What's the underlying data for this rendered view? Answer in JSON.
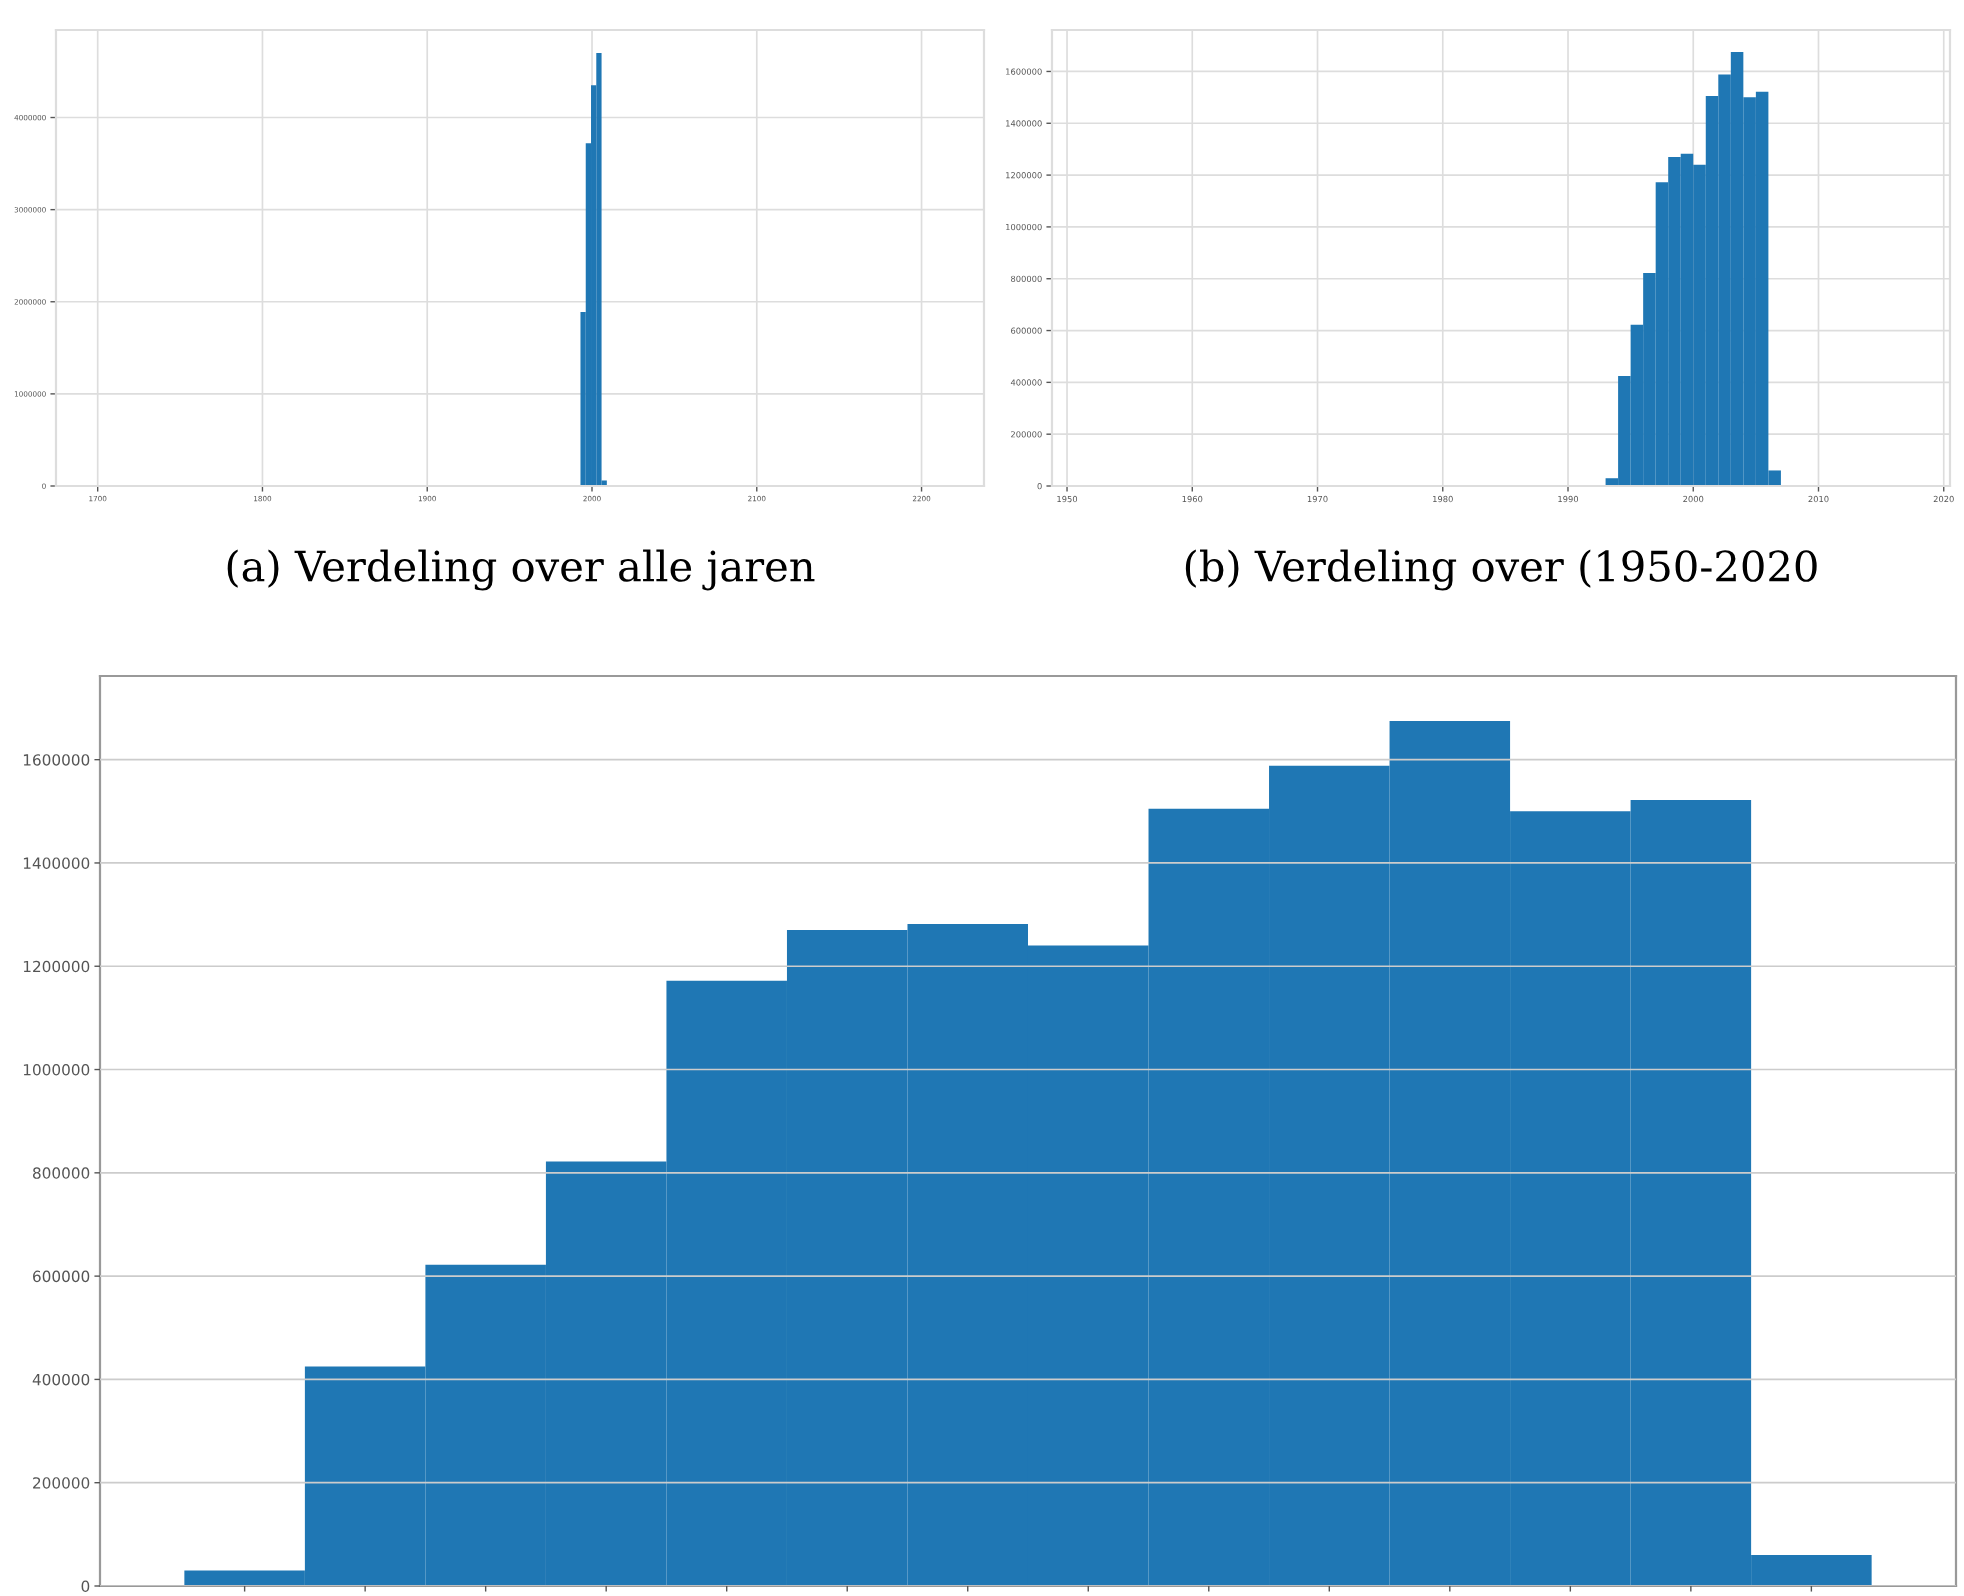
{
  "chart_data": [
    {
      "type": "histogram",
      "title": "(a) Verdeling over alle jaren",
      "color": "#1f77b4",
      "bins": [
        1993,
        1996.2,
        1999.4,
        2002.6,
        2005.8,
        2009
      ],
      "values": [
        1890000,
        3720000,
        4350000,
        4700000,
        60000
      ],
      "xlim": [
        1674.7,
        2237.9
      ],
      "xticks": [
        1700,
        1800,
        1900,
        2000,
        2100,
        2200
      ],
      "ylim": [
        0,
        4950000
      ],
      "yticks": [
        0,
        1000000,
        2000000,
        3000000,
        4000000
      ],
      "grid": true
    },
    {
      "type": "histogram",
      "title": "(b) Verdeling over (1950-2020",
      "color": "#1f77b4",
      "bins": [
        1993,
        1994,
        1995,
        1996,
        1997,
        1998,
        1999,
        2000,
        2001,
        2002,
        2003,
        2004,
        2005,
        2006,
        2007
      ],
      "values": [
        30000,
        425000,
        622000,
        822000,
        1172000,
        1270000,
        1282000,
        1240000,
        1505000,
        1588000,
        1675000,
        1500000,
        1522000,
        60000
      ],
      "xlim": [
        1948.8,
        2020.5
      ],
      "xticks": [
        1950,
        1960,
        1970,
        1980,
        1990,
        2000,
        2010,
        2020
      ],
      "ylim": [
        0,
        1760000
      ],
      "yticks": [
        0,
        200000,
        400000,
        600000,
        800000,
        1000000,
        1200000,
        1400000,
        1600000
      ],
      "grid": true
    },
    {
      "type": "bar",
      "color": "#1f77b4",
      "categories": [
        null,
        null,
        null,
        null,
        null,
        null,
        null,
        null,
        null,
        null,
        null,
        null,
        null,
        null
      ],
      "values": [
        30000,
        425000,
        622000,
        822000,
        1172000,
        1270000,
        1282000,
        1240000,
        1505000,
        1588000,
        1675000,
        1500000,
        1522000,
        60000
      ],
      "ylim": [
        0,
        1762000
      ],
      "yticks": [
        0,
        200000,
        400000,
        600000,
        800000,
        1000000,
        1200000,
        1400000,
        1600000
      ],
      "grid": "y"
    }
  ]
}
